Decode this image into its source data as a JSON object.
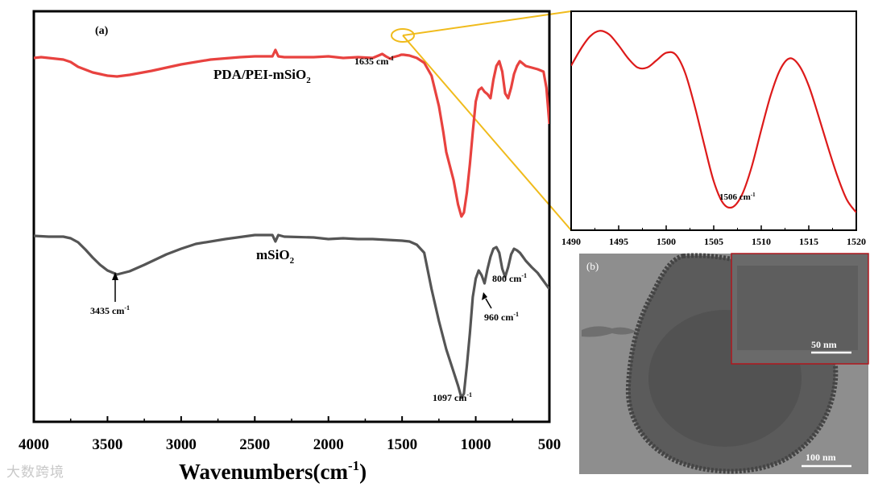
{
  "chart_data": [
    {
      "type": "line",
      "panel_label": "(a)",
      "xlabel": "Wavenumbers(cm",
      "xlabel_sup": "-1",
      "xlabel_close": ")",
      "ylabel": "",
      "xlim": [
        4000,
        500
      ],
      "x_reversed": true,
      "xticks": [
        "4000",
        "3500",
        "3000",
        "2500",
        "2000",
        "1500",
        "1000",
        "500"
      ],
      "series": [
        {
          "name": "PDA/PEI-mSiO",
          "name_sub": "2",
          "color": "#e8423f",
          "x": [
            4000,
            3950,
            3900,
            3800,
            3750,
            3700,
            3600,
            3500,
            3435,
            3350,
            3200,
            3000,
            2800,
            2600,
            2500,
            2380,
            2360,
            2340,
            2300,
            2100,
            2000,
            1900,
            1800,
            1700,
            1660,
            1635,
            1610,
            1580,
            1560,
            1520,
            1506,
            1490,
            1450,
            1400,
            1350,
            1300,
            1250,
            1220,
            1200,
            1150,
            1120,
            1097,
            1080,
            1060,
            1040,
            1020,
            1000,
            980,
            960,
            940,
            920,
            900,
            880,
            860,
            840,
            820,
            800,
            780,
            760,
            740,
            720,
            700,
            680,
            660,
            620,
            580,
            540,
            520,
            500
          ],
          "y": [
            58,
            57,
            58,
            60,
            63,
            69,
            76,
            80,
            81,
            79,
            74,
            66,
            60,
            57,
            56,
            56,
            48,
            56,
            57,
            57,
            56,
            58,
            57,
            58,
            55,
            53,
            56,
            59,
            57,
            55,
            54,
            54,
            55,
            58,
            64,
            80,
            118,
            150,
            175,
            210,
            240,
            255,
            250,
            225,
            190,
            150,
            112,
            98,
            95,
            100,
            103,
            108,
            85,
            68,
            62,
            75,
            102,
            108,
            95,
            78,
            68,
            62,
            65,
            68,
            70,
            72,
            75,
            95,
            140
          ]
        },
        {
          "name": "mSiO",
          "name_sub": "2",
          "color": "#555555",
          "x": [
            4000,
            3900,
            3800,
            3750,
            3700,
            3650,
            3600,
            3550,
            3500,
            3435,
            3350,
            3250,
            3100,
            3000,
            2900,
            2700,
            2500,
            2380,
            2360,
            2340,
            2300,
            2100,
            2000,
            1900,
            1800,
            1700,
            1600,
            1500,
            1450,
            1400,
            1350,
            1300,
            1250,
            1200,
            1150,
            1120,
            1097,
            1080,
            1060,
            1040,
            1020,
            1000,
            980,
            960,
            940,
            920,
            900,
            880,
            860,
            840,
            820,
            800,
            780,
            760,
            740,
            720,
            700,
            680,
            660,
            620,
            580,
            540,
            520,
            500
          ],
          "y": [
            279,
            280,
            280,
            282,
            287,
            296,
            306,
            315,
            322,
            327,
            323,
            315,
            302,
            295,
            289,
            283,
            278,
            278,
            286,
            278,
            280,
            281,
            283,
            282,
            283,
            283,
            284,
            285,
            286,
            290,
            300,
            345,
            385,
            420,
            448,
            465,
            480,
            475,
            440,
            400,
            355,
            332,
            322,
            328,
            338,
            320,
            305,
            295,
            293,
            300,
            320,
            330,
            318,
            302,
            295,
            297,
            300,
            305,
            310,
            318,
            325,
            335,
            340,
            345
          ]
        }
      ],
      "annotations": [
        {
          "text": "1635 cm",
          "sup": "-1"
        },
        {
          "text": "3435 cm",
          "sup": "-1"
        },
        {
          "text": "1097 cm",
          "sup": "-1"
        },
        {
          "text": "960 cm",
          "sup": "-1"
        },
        {
          "text": "800 cm",
          "sup": "-1"
        }
      ]
    },
    {
      "type": "line",
      "panel_label": "",
      "title": "",
      "xlabel": "",
      "ylabel": "",
      "xlim": [
        1490,
        1520
      ],
      "xticks": [
        "1490",
        "1495",
        "1500",
        "1505",
        "1510",
        "1515",
        "1520"
      ],
      "series": [
        {
          "name": "",
          "color": "#dd1a1a",
          "x": [
            1490,
            1491,
            1492,
            1493,
            1494,
            1495,
            1496,
            1497,
            1498,
            1499,
            1500,
            1501,
            1502,
            1503,
            1504,
            1505,
            1506,
            1507,
            1508,
            1509,
            1510,
            1511,
            1512,
            1513,
            1514,
            1515,
            1516,
            1517,
            1518,
            1519,
            1520
          ],
          "y": [
            0.8,
            0.89,
            0.96,
            0.99,
            0.97,
            0.91,
            0.84,
            0.79,
            0.79,
            0.83,
            0.87,
            0.86,
            0.76,
            0.58,
            0.37,
            0.17,
            0.05,
            0.03,
            0.1,
            0.25,
            0.45,
            0.64,
            0.78,
            0.84,
            0.8,
            0.69,
            0.53,
            0.36,
            0.2,
            0.07,
            0.0
          ]
        }
      ],
      "annotations": [
        {
          "text": "1506 cm",
          "sup": "-1"
        }
      ]
    }
  ],
  "micrograph": {
    "panel_label": "(b)",
    "inset_scale_bar": "50 nm",
    "scale_bar": "100 nm"
  },
  "watermark": "大数跨境",
  "colors": {
    "pda_curve": "#e8423f",
    "msio2_curve": "#555555",
    "inset_curve": "#dd1a1a",
    "zoom_lines": "#f0bb1c",
    "inset_frame": "#b0161c"
  }
}
